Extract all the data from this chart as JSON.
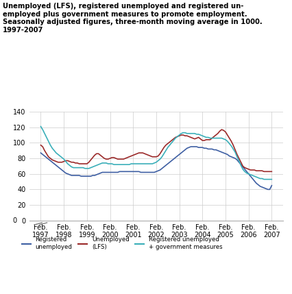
{
  "title": "Unemployed (LFS), registered unemployed and registered un-\nemployed plus government measures to promote employment.\nSeasonally adjusted figures, three-month moving average in 1000.\n1997-2007",
  "ylim": [
    0,
    140
  ],
  "yticks": [
    0,
    20,
    40,
    60,
    80,
    100,
    120,
    140
  ],
  "xtick_labels": [
    "Feb.\n1997",
    "Feb.\n1998",
    "Feb.\n1999",
    "Feb.\n2000",
    "Feb.\n2001",
    "Feb.\n2002",
    "Feb.\n2003",
    "Feb.\n2004",
    "Feb.\n2005",
    "Feb.\n2006",
    "Feb.\n2007"
  ],
  "colors": {
    "registered_unemployed": "#3e5fa3",
    "unemployed_lfs": "#9b2a2a",
    "reg_plus_gov": "#3aafb9"
  },
  "legend": [
    {
      "label": "Registered\nunemployed",
      "color": "#3e5fa3"
    },
    {
      "label": "Unemployed\n(LFS)",
      "color": "#9b2a2a"
    },
    {
      "label": "Registered unemployed\n+ government measures",
      "color": "#3aafb9"
    }
  ],
  "n_months": 121,
  "registered_unemployed": [
    87,
    85,
    83,
    81,
    79,
    77,
    75,
    73,
    71,
    69,
    67,
    65,
    63,
    61,
    60,
    59,
    58,
    58,
    58,
    58,
    58,
    57,
    57,
    57,
    57,
    57,
    57,
    58,
    58,
    59,
    60,
    61,
    62,
    62,
    62,
    62,
    62,
    62,
    62,
    62,
    62,
    63,
    63,
    63,
    63,
    63,
    63,
    63,
    63,
    63,
    63,
    63,
    62,
    62,
    62,
    62,
    62,
    62,
    62,
    62,
    63,
    64,
    65,
    67,
    69,
    71,
    73,
    75,
    77,
    79,
    81,
    83,
    85,
    87,
    89,
    91,
    93,
    94,
    95,
    95,
    95,
    95,
    94,
    94,
    94,
    93,
    93,
    92,
    92,
    92,
    91,
    91,
    90,
    89,
    88,
    87,
    86,
    85,
    83,
    82,
    81,
    80,
    78,
    75,
    72,
    69,
    66,
    63,
    60,
    57,
    54,
    51,
    48,
    46,
    44,
    43,
    42,
    41,
    40,
    40,
    45
  ],
  "unemployed_lfs": [
    97,
    95,
    90,
    86,
    82,
    80,
    78,
    77,
    76,
    75,
    75,
    75,
    76,
    77,
    77,
    76,
    75,
    75,
    74,
    74,
    73,
    73,
    73,
    73,
    73,
    75,
    78,
    81,
    84,
    86,
    86,
    84,
    82,
    80,
    79,
    79,
    80,
    81,
    81,
    80,
    79,
    79,
    79,
    79,
    80,
    81,
    82,
    83,
    84,
    85,
    86,
    87,
    87,
    87,
    86,
    85,
    84,
    83,
    82,
    82,
    82,
    83,
    86,
    90,
    94,
    97,
    99,
    101,
    103,
    105,
    107,
    108,
    109,
    110,
    110,
    109,
    109,
    108,
    107,
    106,
    105,
    106,
    107,
    105,
    103,
    103,
    104,
    104,
    104,
    106,
    108,
    110,
    112,
    115,
    117,
    116,
    114,
    110,
    106,
    102,
    97,
    91,
    85,
    80,
    75,
    70,
    68,
    67,
    66,
    65,
    65,
    65,
    64,
    64,
    64,
    64,
    63,
    63,
    63,
    63,
    63
  ],
  "reg_plus_gov": [
    121,
    117,
    112,
    107,
    102,
    97,
    93,
    90,
    87,
    85,
    83,
    81,
    79,
    76,
    73,
    71,
    69,
    68,
    68,
    68,
    68,
    68,
    68,
    67,
    67,
    67,
    68,
    69,
    70,
    71,
    72,
    73,
    74,
    74,
    74,
    73,
    73,
    73,
    72,
    72,
    72,
    72,
    72,
    72,
    72,
    72,
    72,
    73,
    73,
    73,
    73,
    73,
    73,
    73,
    73,
    73,
    73,
    73,
    73,
    74,
    75,
    77,
    79,
    82,
    86,
    90,
    94,
    97,
    100,
    103,
    106,
    108,
    110,
    112,
    113,
    113,
    112,
    112,
    112,
    112,
    112,
    111,
    111,
    110,
    109,
    108,
    107,
    107,
    106,
    106,
    106,
    106,
    106,
    106,
    106,
    105,
    104,
    102,
    99,
    96,
    92,
    88,
    82,
    77,
    71,
    66,
    63,
    61,
    60,
    59,
    58,
    57,
    56,
    55,
    54,
    54,
    53,
    53,
    53,
    53,
    53
  ]
}
